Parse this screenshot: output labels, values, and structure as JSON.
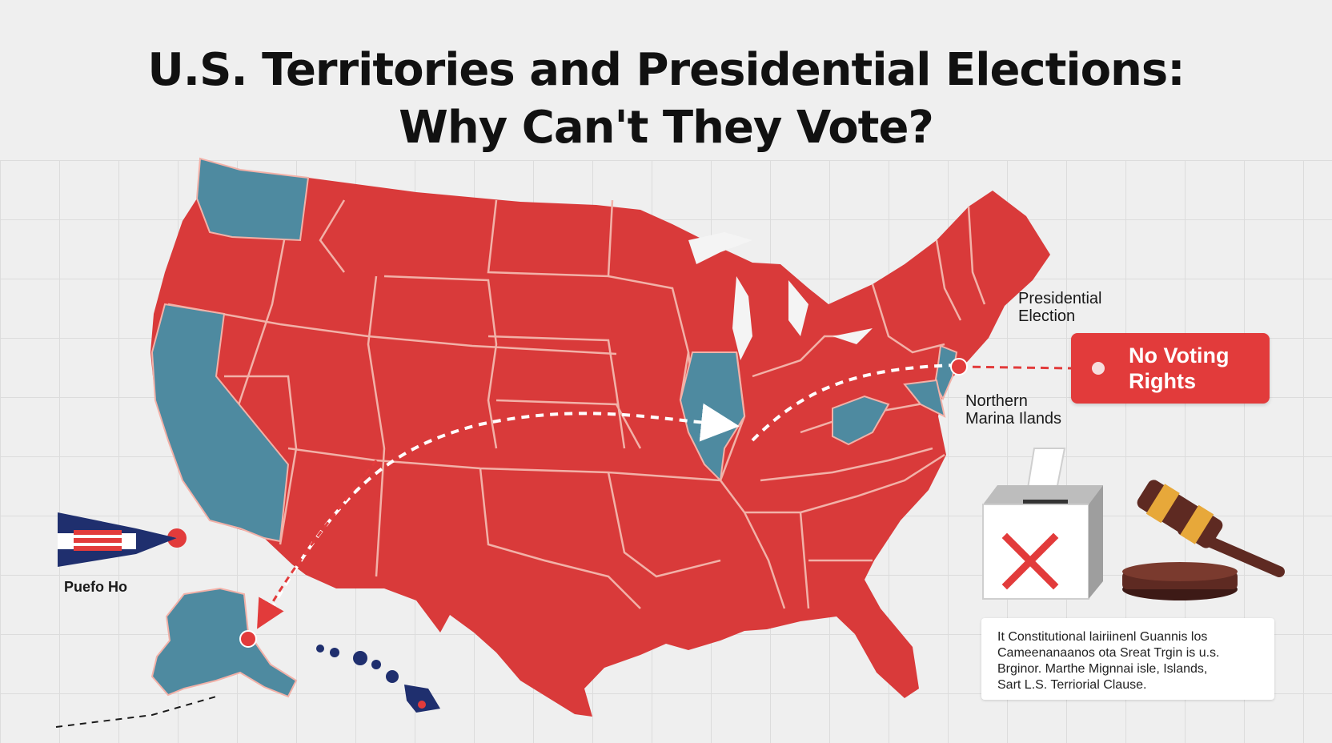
{
  "title": {
    "line1": "U.S. Territories and Presidential Elections:",
    "line2": "Why Can't They Vote?"
  },
  "labels": {
    "presidential_line1": "Presidential",
    "presidential_line2": "Election",
    "northern_line1": "Northern",
    "northern_line2": "Marina Ilands",
    "puerto": "Puefo Ho"
  },
  "tag": {
    "line1": "No Voting",
    "line2": "Rights"
  },
  "caption": {
    "line1": "It Constitutional lairiinenl Guannis los",
    "line2": "Cameenanaanos  ota Sreat  Trgin is u.s.",
    "line3": "Brginor. Marthe Mignnai isle,  Islands,",
    "line4": "Sart L.S. Terriorial Clause."
  },
  "colors": {
    "state_red": "#d93a3a",
    "state_blue": "#4e8aa0",
    "border": "#f2b1a8",
    "accent_red": "#e23b3b",
    "navy": "#1f2f6e",
    "gavel_wood": "#5e2a22",
    "gavel_band": "#e7a83a"
  },
  "icons": [
    "ballot-box-icon",
    "x-mark-icon",
    "gavel-icon",
    "flag-icon",
    "tag-icon"
  ]
}
